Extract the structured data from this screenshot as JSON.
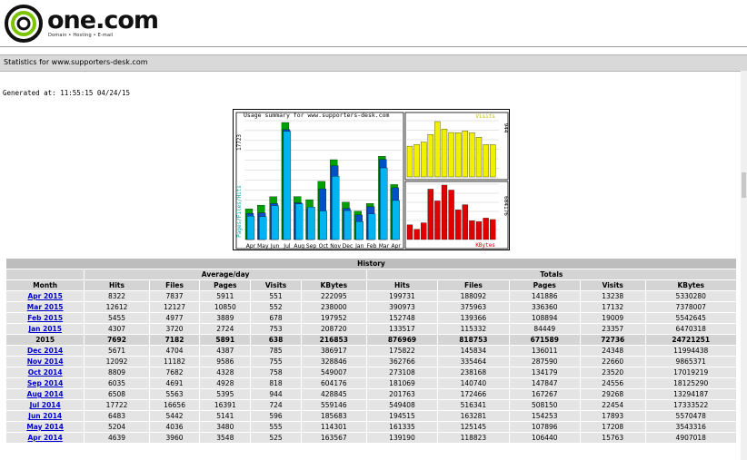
{
  "brand": {
    "name": "one.com",
    "tagline": "Domain • Hosting • E-mail"
  },
  "stats_title": "Statistics for www.supporters-desk.com",
  "generated": "Generated at: 11:55:15 04/24/15",
  "chart_data": {
    "type": "bar",
    "title": "Usage summary for www.supporters-desk.com",
    "categories": [
      "Apr",
      "May",
      "Jun",
      "Jul",
      "Aug",
      "Sep",
      "Oct",
      "Nov",
      "Dec",
      "Jan",
      "Feb",
      "Mar",
      "Apr"
    ],
    "ylabel_left": "Pages/Files/Hits",
    "ymax_label": "17723",
    "series": [
      {
        "name": "Hits",
        "values": [
          4639,
          5204,
          6483,
          17722,
          6508,
          6035,
          8809,
          12092,
          5671,
          4307,
          5455,
          12612,
          8322
        ]
      },
      {
        "name": "Files",
        "values": [
          3960,
          4036,
          5442,
          16656,
          5563,
          4691,
          7682,
          11182,
          4704,
          3720,
          4977,
          12127,
          7837
        ]
      },
      {
        "name": "Pages",
        "values": [
          3548,
          3480,
          5141,
          16391,
          5395,
          4928,
          4328,
          9586,
          4387,
          2724,
          3889,
          10850,
          5911
        ]
      }
    ],
    "visits_panel": {
      "label": "Visits",
      "max_label": "944",
      "values": [
        525,
        555,
        596,
        724,
        944,
        818,
        758,
        755,
        785,
        753,
        678,
        552,
        551
      ]
    },
    "kbytes_panel": {
      "label": "KBytes",
      "max_label": "604176",
      "values": [
        163567,
        114301,
        185683,
        559146,
        428845,
        604176,
        549007,
        328846,
        386917,
        208720,
        197952,
        238000,
        222095
      ]
    },
    "colors": {
      "hits": "#00a000",
      "files": "#0050c8",
      "pages": "#00b4f0",
      "visits": "#f0f000",
      "kbytes": "#e00000"
    }
  },
  "history": {
    "title": "History",
    "group_avg": "Average/day",
    "group_tot": "Totals",
    "headers": [
      "Month",
      "Hits",
      "Files",
      "Pages",
      "Visits",
      "KBytes",
      "Hits",
      "Files",
      "Pages",
      "Visits",
      "KBytes"
    ],
    "rows": [
      {
        "month": "Apr 2015",
        "vals": [
          "8322",
          "7837",
          "5911",
          "551",
          "222095",
          "199731",
          "188092",
          "141886",
          "13238",
          "5330280"
        ]
      },
      {
        "month": "Mar 2015",
        "vals": [
          "12612",
          "12127",
          "10850",
          "552",
          "238000",
          "390973",
          "375963",
          "336360",
          "17132",
          "7378007"
        ]
      },
      {
        "month": "Feb 2015",
        "vals": [
          "5455",
          "4977",
          "3889",
          "678",
          "197952",
          "152748",
          "139366",
          "108894",
          "19009",
          "5542645"
        ]
      },
      {
        "month": "Jan 2015",
        "vals": [
          "4307",
          "3720",
          "2724",
          "753",
          "208720",
          "133517",
          "115332",
          "84449",
          "23357",
          "6470318"
        ]
      },
      {
        "month": "2015",
        "year": true,
        "vals": [
          "7692",
          "7182",
          "5891",
          "638",
          "216853",
          "876969",
          "818753",
          "671589",
          "72736",
          "24721251"
        ]
      },
      {
        "month": "Dec 2014",
        "vals": [
          "5671",
          "4704",
          "4387",
          "785",
          "386917",
          "175822",
          "145834",
          "136011",
          "24348",
          "11994438"
        ]
      },
      {
        "month": "Nov 2014",
        "vals": [
          "12092",
          "11182",
          "9586",
          "755",
          "328846",
          "362766",
          "335464",
          "287590",
          "22660",
          "9865371"
        ]
      },
      {
        "month": "Oct 2014",
        "vals": [
          "8809",
          "7682",
          "4328",
          "758",
          "549007",
          "273108",
          "238168",
          "134179",
          "23520",
          "17019219"
        ]
      },
      {
        "month": "Sep 2014",
        "vals": [
          "6035",
          "4691",
          "4928",
          "818",
          "604176",
          "181069",
          "140740",
          "147847",
          "24556",
          "18125290"
        ]
      },
      {
        "month": "Aug 2014",
        "vals": [
          "6508",
          "5563",
          "5395",
          "944",
          "428845",
          "201763",
          "172466",
          "167267",
          "29268",
          "13294187"
        ]
      },
      {
        "month": "Jul 2014",
        "vals": [
          "17722",
          "16656",
          "16391",
          "724",
          "559146",
          "549408",
          "516341",
          "508150",
          "22454",
          "17333522"
        ]
      },
      {
        "month": "Jun 2014",
        "vals": [
          "6483",
          "5442",
          "5141",
          "596",
          "185683",
          "194515",
          "163281",
          "154253",
          "17893",
          "5570478"
        ]
      },
      {
        "month": "May 2014",
        "vals": [
          "5204",
          "4036",
          "3480",
          "555",
          "114301",
          "161335",
          "125145",
          "107896",
          "17208",
          "3543316"
        ]
      },
      {
        "month": "Apr 2014",
        "vals": [
          "4639",
          "3960",
          "3548",
          "525",
          "163567",
          "139190",
          "118823",
          "106440",
          "15763",
          "4907018"
        ]
      }
    ]
  }
}
